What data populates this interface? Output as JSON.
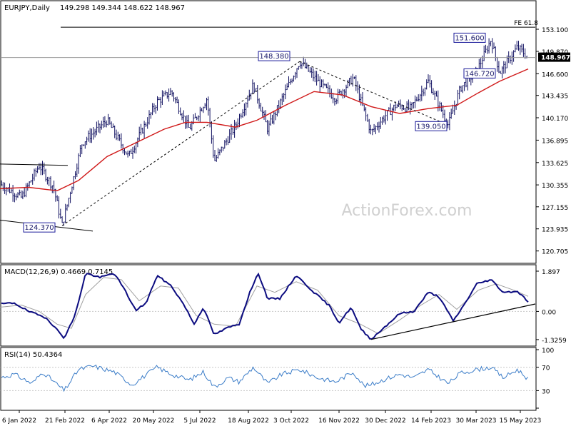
{
  "header": {
    "symbol": "EURJPY,Daily",
    "ohlc": "149.298 149.344 148.622 148.967"
  },
  "watermark": "ActionForex.com",
  "colors": {
    "price_bar": "#101060",
    "ma": "#d01818",
    "macd_line": "#0c0c80",
    "signal_line": "#a0a0a0",
    "rsi_line": "#3a7cc8",
    "trendline": "#000000",
    "dashed": "#000000",
    "fe_line": "#000000",
    "grid": "#c8c8c8",
    "current_tag_bg": "#000000",
    "current_tag_text": "#ffffff",
    "label_border": "#1a1a9a"
  },
  "chart_data": [
    {
      "type": "line",
      "name": "price",
      "ylim": [
        119.0,
        155.5
      ],
      "y_ticks": [
        "153.100",
        "149.870",
        "146.600",
        "143.435",
        "140.170",
        "136.895",
        "133.625",
        "130.355",
        "127.155",
        "123.935",
        "120.705"
      ],
      "x_labels": [
        "6 Jan 2022",
        "21 Feb 2022",
        "6 Apr 2022",
        "20 May 2022",
        "5 Jul 2022",
        "18 Aug 2022",
        "3 Oct 2022",
        "16 Nov 2022",
        "30 Dec 2022",
        "14 Feb 2023",
        "30 Mar 2023",
        "15 May 2023"
      ],
      "current_price": "148.967",
      "price_key_points": [
        {
          "x": 0,
          "y": 130.5
        },
        {
          "x": 30,
          "y": 128.5
        },
        {
          "x": 55,
          "y": 133.2
        },
        {
          "x": 75,
          "y": 130.0
        },
        {
          "x": 87,
          "y": 124.4
        },
        {
          "x": 115,
          "y": 136.5
        },
        {
          "x": 150,
          "y": 139.8
        },
        {
          "x": 180,
          "y": 134.5
        },
        {
          "x": 220,
          "y": 142.5
        },
        {
          "x": 240,
          "y": 144.0
        },
        {
          "x": 265,
          "y": 138.5
        },
        {
          "x": 290,
          "y": 143.0
        },
        {
          "x": 300,
          "y": 133.8
        },
        {
          "x": 330,
          "y": 139.0
        },
        {
          "x": 355,
          "y": 145.0
        },
        {
          "x": 375,
          "y": 138.5
        },
        {
          "x": 420,
          "y": 148.4
        },
        {
          "x": 445,
          "y": 145.5
        },
        {
          "x": 470,
          "y": 143.0
        },
        {
          "x": 495,
          "y": 146.0
        },
        {
          "x": 520,
          "y": 138.0
        },
        {
          "x": 540,
          "y": 140.5
        },
        {
          "x": 555,
          "y": 142.0
        },
        {
          "x": 575,
          "y": 141.5
        },
        {
          "x": 600,
          "y": 145.5
        },
        {
          "x": 628,
          "y": 139.1
        },
        {
          "x": 645,
          "y": 144.5
        },
        {
          "x": 668,
          "y": 147.0
        },
        {
          "x": 688,
          "y": 151.6
        },
        {
          "x": 700,
          "y": 146.7
        },
        {
          "x": 725,
          "y": 150.5
        },
        {
          "x": 740,
          "y": 149.0
        }
      ],
      "ma_key_points": [
        {
          "x": 0,
          "y": 129.8
        },
        {
          "x": 40,
          "y": 130.0
        },
        {
          "x": 80,
          "y": 129.5
        },
        {
          "x": 110,
          "y": 131.0
        },
        {
          "x": 150,
          "y": 134.5
        },
        {
          "x": 190,
          "y": 136.5
        },
        {
          "x": 230,
          "y": 138.5
        },
        {
          "x": 260,
          "y": 139.5
        },
        {
          "x": 290,
          "y": 139.5
        },
        {
          "x": 330,
          "y": 138.8
        },
        {
          "x": 360,
          "y": 139.8
        },
        {
          "x": 400,
          "y": 142.0
        },
        {
          "x": 440,
          "y": 144.0
        },
        {
          "x": 480,
          "y": 143.5
        },
        {
          "x": 520,
          "y": 141.8
        },
        {
          "x": 560,
          "y": 140.8
        },
        {
          "x": 600,
          "y": 141.5
        },
        {
          "x": 640,
          "y": 142.0
        },
        {
          "x": 670,
          "y": 143.8
        },
        {
          "x": 700,
          "y": 145.5
        },
        {
          "x": 740,
          "y": 147.3
        }
      ],
      "annotations": [
        {
          "label": "148.380",
          "x": 420,
          "y": 148.4
        },
        {
          "label": "124.370",
          "x": 87,
          "y": 124.4
        },
        {
          "label": "139.050",
          "x": 628,
          "y": 139.1
        },
        {
          "label": "151.600",
          "x": 688,
          "y": 151.6
        },
        {
          "label": "146.720",
          "x": 700,
          "y": 146.7
        },
        {
          "label": "FE 61.8",
          "x": 740,
          "y": 153.4
        }
      ],
      "lines": [
        {
          "kind": "dashed",
          "from": {
            "x": 87,
            "y": 124.4
          },
          "to": {
            "x": 420,
            "y": 148.4
          }
        },
        {
          "kind": "dashed",
          "from": {
            "x": 420,
            "y": 148.4
          },
          "to": {
            "x": 628,
            "y": 139.1
          }
        },
        {
          "kind": "solid",
          "from": {
            "x": 0,
            "y": 133.4
          },
          "to": {
            "x": 95,
            "y": 133.2
          }
        },
        {
          "kind": "solid",
          "from": {
            "x": 0,
            "y": 125.2
          },
          "to": {
            "x": 130,
            "y": 123.6
          }
        },
        {
          "kind": "fe",
          "from": {
            "x": 85,
            "y": 153.4
          },
          "to": {
            "x": 750,
            "y": 153.4
          }
        }
      ]
    },
    {
      "type": "line",
      "name": "MACD(12,26,9)",
      "title": "MACD(12,26,9) 0.4669 0.7145",
      "ylim": [
        -1.6,
        2.1
      ],
      "y_ticks": [
        "1.897",
        "0.00",
        "-1.3259"
      ],
      "macd_key_points": [
        {
          "x": 0,
          "y": 0.35
        },
        {
          "x": 20,
          "y": 0.4
        },
        {
          "x": 40,
          "y": 0.0
        },
        {
          "x": 65,
          "y": -0.3
        },
        {
          "x": 90,
          "y": -1.25
        },
        {
          "x": 105,
          "y": -0.2
        },
        {
          "x": 120,
          "y": 1.8
        },
        {
          "x": 140,
          "y": 1.6
        },
        {
          "x": 160,
          "y": 1.8
        },
        {
          "x": 175,
          "y": 1.0
        },
        {
          "x": 190,
          "y": 0.05
        },
        {
          "x": 205,
          "y": 0.4
        },
        {
          "x": 220,
          "y": 1.7
        },
        {
          "x": 240,
          "y": 1.2
        },
        {
          "x": 258,
          "y": 0.3
        },
        {
          "x": 272,
          "y": -0.6
        },
        {
          "x": 285,
          "y": 0.2
        },
        {
          "x": 300,
          "y": -1.1
        },
        {
          "x": 320,
          "y": -0.75
        },
        {
          "x": 335,
          "y": -0.6
        },
        {
          "x": 350,
          "y": 0.9
        },
        {
          "x": 362,
          "y": 1.8
        },
        {
          "x": 375,
          "y": 0.6
        },
        {
          "x": 392,
          "y": 0.6
        },
        {
          "x": 415,
          "y": 1.7
        },
        {
          "x": 440,
          "y": 0.9
        },
        {
          "x": 462,
          "y": 0.25
        },
        {
          "x": 475,
          "y": -0.55
        },
        {
          "x": 492,
          "y": 0.2
        },
        {
          "x": 505,
          "y": -0.8
        },
        {
          "x": 520,
          "y": -1.32
        },
        {
          "x": 540,
          "y": -0.7
        },
        {
          "x": 560,
          "y": -0.1
        },
        {
          "x": 580,
          "y": 0.0
        },
        {
          "x": 600,
          "y": 0.9
        },
        {
          "x": 615,
          "y": 0.7
        },
        {
          "x": 635,
          "y": -0.45
        },
        {
          "x": 650,
          "y": 0.3
        },
        {
          "x": 668,
          "y": 1.3
        },
        {
          "x": 688,
          "y": 1.5
        },
        {
          "x": 705,
          "y": 0.9
        },
        {
          "x": 725,
          "y": 0.95
        },
        {
          "x": 740,
          "y": 0.47
        }
      ],
      "signal_key_points": [
        {
          "x": 0,
          "y": 0.2
        },
        {
          "x": 30,
          "y": 0.3
        },
        {
          "x": 55,
          "y": 0.0
        },
        {
          "x": 80,
          "y": -0.6
        },
        {
          "x": 100,
          "y": -0.8
        },
        {
          "x": 120,
          "y": 0.8
        },
        {
          "x": 145,
          "y": 1.6
        },
        {
          "x": 170,
          "y": 1.5
        },
        {
          "x": 195,
          "y": 0.5
        },
        {
          "x": 225,
          "y": 1.2
        },
        {
          "x": 250,
          "y": 1.1
        },
        {
          "x": 275,
          "y": -0.2
        },
        {
          "x": 300,
          "y": -0.6
        },
        {
          "x": 330,
          "y": -0.7
        },
        {
          "x": 360,
          "y": 1.2
        },
        {
          "x": 385,
          "y": 0.9
        },
        {
          "x": 415,
          "y": 1.4
        },
        {
          "x": 445,
          "y": 1.0
        },
        {
          "x": 475,
          "y": -0.2
        },
        {
          "x": 505,
          "y": -0.6
        },
        {
          "x": 530,
          "y": -1.05
        },
        {
          "x": 560,
          "y": -0.4
        },
        {
          "x": 590,
          "y": 0.3
        },
        {
          "x": 615,
          "y": 0.8
        },
        {
          "x": 640,
          "y": 0.1
        },
        {
          "x": 670,
          "y": 1.0
        },
        {
          "x": 695,
          "y": 1.3
        },
        {
          "x": 720,
          "y": 1.0
        },
        {
          "x": 740,
          "y": 0.71
        }
      ],
      "trendline": {
        "from": {
          "x": 520,
          "y": -1.32
        },
        "to": {
          "x": 750,
          "y": 0.35
        }
      }
    },
    {
      "type": "line",
      "name": "RSI(14)",
      "title": "RSI(14) 50.4364",
      "ylim": [
        0,
        100
      ],
      "y_ticks": [
        "100",
        "70",
        "30",
        "0"
      ],
      "levels": [
        70,
        30
      ],
      "rsi_key_points": [
        {
          "x": 0,
          "y": 52
        },
        {
          "x": 20,
          "y": 58
        },
        {
          "x": 45,
          "y": 42
        },
        {
          "x": 60,
          "y": 62
        },
        {
          "x": 90,
          "y": 30
        },
        {
          "x": 110,
          "y": 66
        },
        {
          "x": 130,
          "y": 72
        },
        {
          "x": 160,
          "y": 62
        },
        {
          "x": 185,
          "y": 40
        },
        {
          "x": 220,
          "y": 70
        },
        {
          "x": 240,
          "y": 58
        },
        {
          "x": 265,
          "y": 48
        },
        {
          "x": 285,
          "y": 62
        },
        {
          "x": 300,
          "y": 36
        },
        {
          "x": 320,
          "y": 52
        },
        {
          "x": 335,
          "y": 45
        },
        {
          "x": 355,
          "y": 70
        },
        {
          "x": 375,
          "y": 42
        },
        {
          "x": 395,
          "y": 58
        },
        {
          "x": 420,
          "y": 66
        },
        {
          "x": 445,
          "y": 52
        },
        {
          "x": 470,
          "y": 45
        },
        {
          "x": 495,
          "y": 62
        },
        {
          "x": 510,
          "y": 38
        },
        {
          "x": 520,
          "y": 40
        },
        {
          "x": 540,
          "y": 50
        },
        {
          "x": 560,
          "y": 58
        },
        {
          "x": 580,
          "y": 52
        },
        {
          "x": 600,
          "y": 66
        },
        {
          "x": 628,
          "y": 42
        },
        {
          "x": 645,
          "y": 60
        },
        {
          "x": 668,
          "y": 66
        },
        {
          "x": 688,
          "y": 70
        },
        {
          "x": 705,
          "y": 52
        },
        {
          "x": 725,
          "y": 66
        },
        {
          "x": 740,
          "y": 50
        }
      ]
    }
  ]
}
